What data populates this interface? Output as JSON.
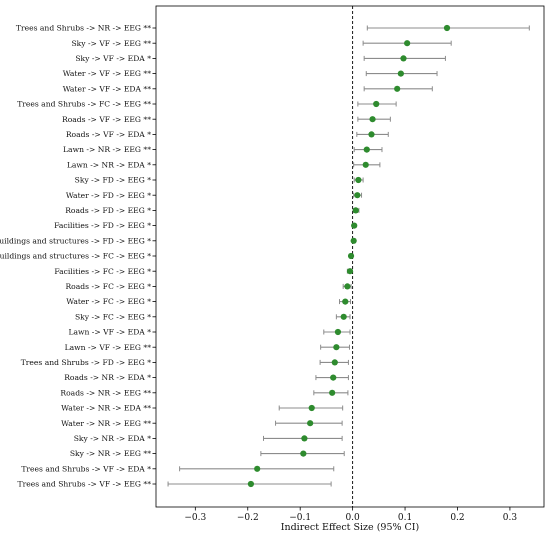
{
  "chart_data": {
    "type": "scatter",
    "orientation": "horizontal",
    "xlabel": "Indirect Effect Size (95% CI)",
    "xlim": [
      -0.375,
      0.365
    ],
    "xticks": [
      -0.3,
      -0.2,
      -0.1,
      0.0,
      0.1,
      0.2,
      0.3
    ],
    "xtick_labels": [
      "−0.3",
      "−0.2",
      "−0.1",
      "0.0",
      "0.1",
      "0.2",
      "0.3"
    ],
    "reference_line": 0,
    "point_color": "#2e8b2e",
    "ci_color": "#8c8c8c",
    "items": [
      {
        "label": "Trees and Shrubs -> NR -> EEG **",
        "estimate": 0.18,
        "ci_low": 0.028,
        "ci_high": 0.337
      },
      {
        "label": "Sky -> VF -> EEG **",
        "estimate": 0.104,
        "ci_low": 0.02,
        "ci_high": 0.188
      },
      {
        "label": "Sky -> VF -> EDA *",
        "estimate": 0.097,
        "ci_low": 0.022,
        "ci_high": 0.177
      },
      {
        "label": "Water -> VF -> EEG **",
        "estimate": 0.092,
        "ci_low": 0.026,
        "ci_high": 0.161
      },
      {
        "label": "Water -> VF -> EDA **",
        "estimate": 0.085,
        "ci_low": 0.022,
        "ci_high": 0.152
      },
      {
        "label": "Trees and Shrubs -> FC -> EEG **",
        "estimate": 0.045,
        "ci_low": 0.01,
        "ci_high": 0.083
      },
      {
        "label": "Roads -> VF -> EEG **",
        "estimate": 0.038,
        "ci_low": 0.01,
        "ci_high": 0.072
      },
      {
        "label": "Roads -> VF -> EDA *",
        "estimate": 0.036,
        "ci_low": 0.008,
        "ci_high": 0.068
      },
      {
        "label": "Lawn -> NR -> EEG **",
        "estimate": 0.027,
        "ci_low": 0.003,
        "ci_high": 0.056
      },
      {
        "label": "Lawn -> NR -> EDA *",
        "estimate": 0.025,
        "ci_low": 0.002,
        "ci_high": 0.052
      },
      {
        "label": "Sky -> FD -> EEG *",
        "estimate": 0.011,
        "ci_low": 0.003,
        "ci_high": 0.02
      },
      {
        "label": "Water -> FD -> EEG *",
        "estimate": 0.009,
        "ci_low": 0.002,
        "ci_high": 0.017
      },
      {
        "label": "Roads -> FD -> EEG *",
        "estimate": 0.006,
        "ci_low": 0.001,
        "ci_high": 0.012
      },
      {
        "label": "Facilities -> FD -> EEG *",
        "estimate": 0.003,
        "ci_low": 0.0,
        "ci_high": 0.006
      },
      {
        "label": "Buildings and structures -> FD -> EEG *",
        "estimate": 0.002,
        "ci_low": 0.0,
        "ci_high": 0.005
      },
      {
        "label": "Buildings and structures -> FC -> EEG *",
        "estimate": -0.003,
        "ci_low": -0.006,
        "ci_high": 0.0
      },
      {
        "label": "Facilities -> FC -> EEG *",
        "estimate": -0.005,
        "ci_low": -0.01,
        "ci_high": -0.001
      },
      {
        "label": "Roads -> FC -> EEG *",
        "estimate": -0.01,
        "ci_low": -0.018,
        "ci_high": -0.003
      },
      {
        "label": "Water -> FC -> EEG *",
        "estimate": -0.014,
        "ci_low": -0.025,
        "ci_high": -0.004
      },
      {
        "label": "Sky -> FC -> EEG *",
        "estimate": -0.017,
        "ci_low": -0.031,
        "ci_high": -0.005
      },
      {
        "label": "Lawn -> VF -> EDA *",
        "estimate": -0.028,
        "ci_low": -0.055,
        "ci_high": -0.005
      },
      {
        "label": "Lawn -> VF -> EEG **",
        "estimate": -0.031,
        "ci_low": -0.061,
        "ci_high": -0.006
      },
      {
        "label": "Trees and Shrubs -> FD -> EEG *",
        "estimate": -0.034,
        "ci_low": -0.062,
        "ci_high": -0.008
      },
      {
        "label": "Roads -> NR -> EDA *",
        "estimate": -0.037,
        "ci_low": -0.07,
        "ci_high": -0.008
      },
      {
        "label": "Roads -> NR -> EEG **",
        "estimate": -0.039,
        "ci_low": -0.074,
        "ci_high": -0.009
      },
      {
        "label": "Water -> NR -> EDA **",
        "estimate": -0.078,
        "ci_low": -0.14,
        "ci_high": -0.019
      },
      {
        "label": "Water -> NR -> EEG **",
        "estimate": -0.081,
        "ci_low": -0.147,
        "ci_high": -0.02
      },
      {
        "label": "Sky -> NR -> EDA *",
        "estimate": -0.092,
        "ci_low": -0.17,
        "ci_high": -0.02
      },
      {
        "label": "Sky -> NR -> EEG **",
        "estimate": -0.094,
        "ci_low": -0.175,
        "ci_high": -0.016
      },
      {
        "label": "Trees and Shrubs -> VF -> EDA *",
        "estimate": -0.182,
        "ci_low": -0.33,
        "ci_high": -0.036
      },
      {
        "label": "Trees and Shrubs -> VF -> EEG **",
        "estimate": -0.194,
        "ci_low": -0.352,
        "ci_high": -0.041
      }
    ]
  }
}
